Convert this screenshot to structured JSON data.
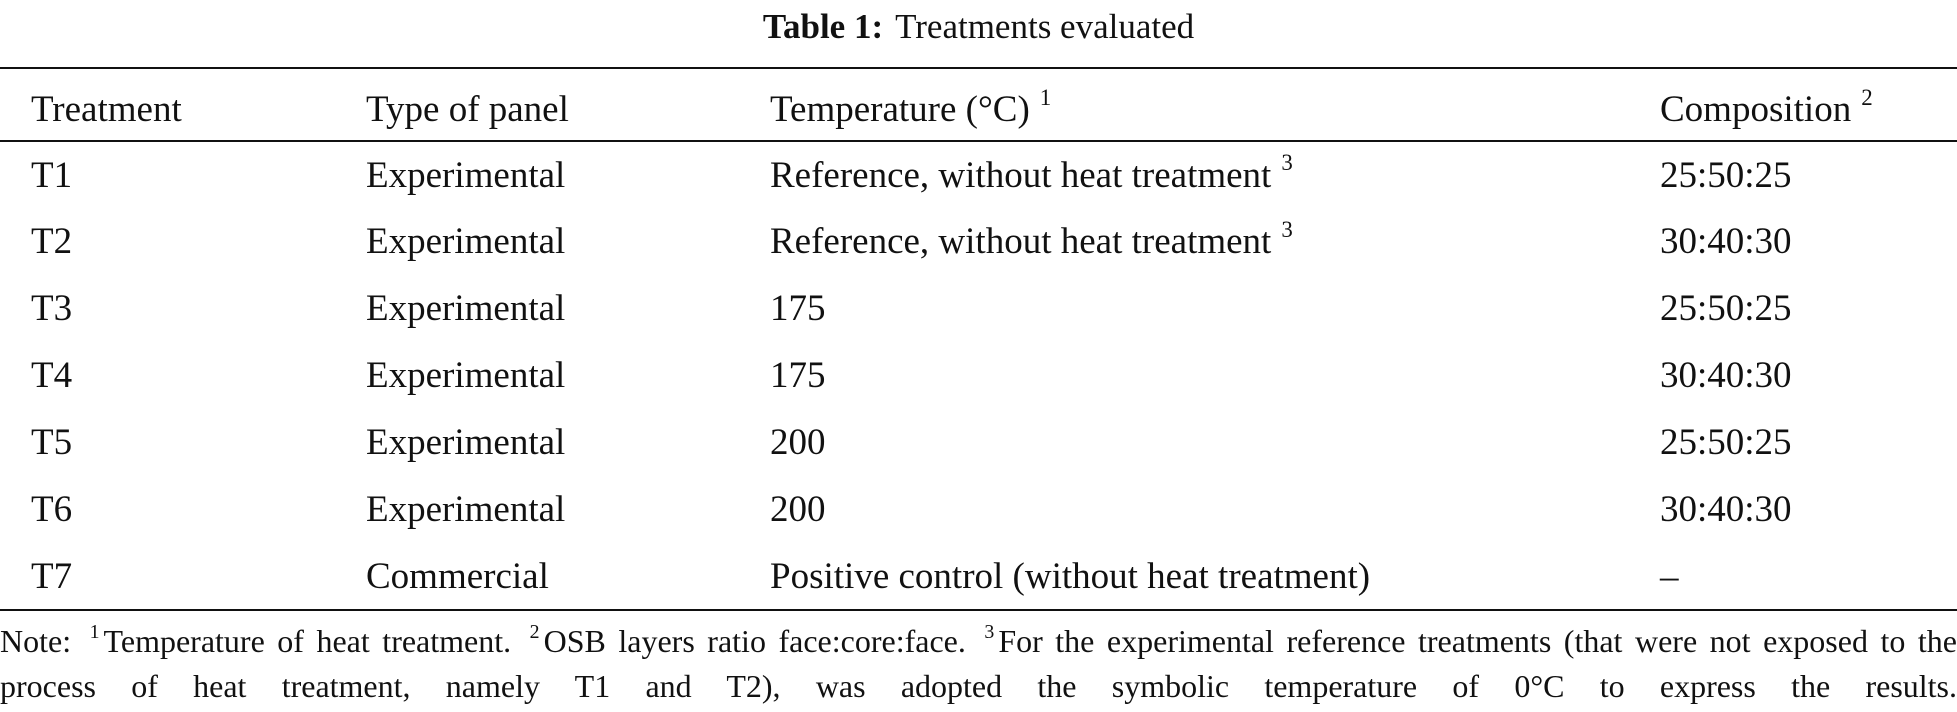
{
  "title": {
    "label": "Table 1:",
    "text": "Treatments evaluated"
  },
  "table": {
    "columns": [
      {
        "text": "Treatment"
      },
      {
        "text": "Type of panel"
      },
      {
        "text": "Temperature (°C)",
        "note": "1"
      },
      {
        "text": "Composition",
        "note": "2"
      }
    ],
    "rows": [
      [
        {
          "text": "T1"
        },
        {
          "text": "Experimental"
        },
        {
          "text": "Reference, without heat treatment",
          "note": "3"
        },
        {
          "text": "25:50:25"
        }
      ],
      [
        {
          "text": "T2"
        },
        {
          "text": "Experimental"
        },
        {
          "text": "Reference, without heat treatment",
          "note": "3"
        },
        {
          "text": "30:40:30"
        }
      ],
      [
        {
          "text": "T3"
        },
        {
          "text": "Experimental"
        },
        {
          "text": "175"
        },
        {
          "text": "25:50:25"
        }
      ],
      [
        {
          "text": "T4"
        },
        {
          "text": "Experimental"
        },
        {
          "text": "175"
        },
        {
          "text": "30:40:30"
        }
      ],
      [
        {
          "text": "T5"
        },
        {
          "text": "Experimental"
        },
        {
          "text": "200"
        },
        {
          "text": "25:50:25"
        }
      ],
      [
        {
          "text": "T6"
        },
        {
          "text": "Experimental"
        },
        {
          "text": "200"
        },
        {
          "text": "30:40:30"
        }
      ],
      [
        {
          "text": "T7"
        },
        {
          "text": "Commercial"
        },
        {
          "text": "Positive control (without heat treatment)"
        },
        {
          "text": "–"
        }
      ]
    ]
  },
  "note": {
    "prefix": "Note:",
    "items": [
      {
        "mark": "1",
        "text": "Temperature of heat treatment."
      },
      {
        "mark": "2",
        "text": "OSB layers ratio face:core:face."
      },
      {
        "mark": "3",
        "text": "For the experimental reference treatments (that were not exposed to the process of heat treatment, namely T1 and T2), was adopted the symbolic temperature of 0°C to express the results."
      }
    ]
  }
}
